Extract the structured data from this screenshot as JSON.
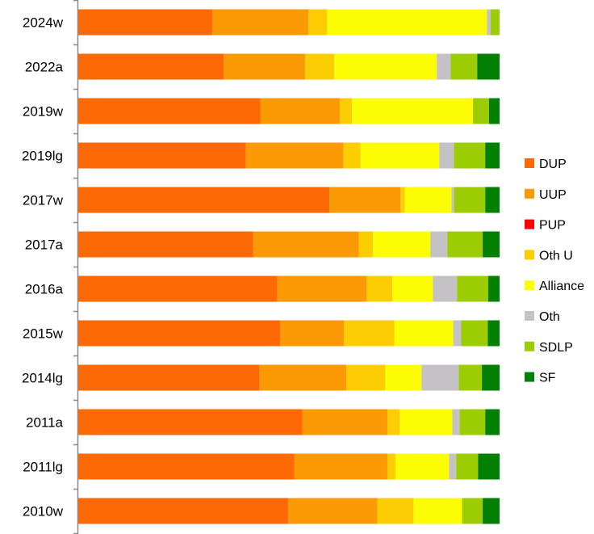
{
  "chart_data": {
    "type": "bar",
    "orientation": "horizontal",
    "stacked": "percent",
    "xlim": [
      0,
      100
    ],
    "grid": false,
    "legend_placement": "right",
    "categories": [
      "2024w",
      "2022a",
      "2019w",
      "2019lg",
      "2017w",
      "2017a",
      "2016a",
      "2015w",
      "2014lg",
      "2011a",
      "2011lg",
      "2010w"
    ],
    "series": [
      {
        "name": "DUP",
        "color": "#FD6905",
        "values": [
          31.8,
          34.5,
          43.2,
          39.7,
          59.6,
          41.5,
          47.2,
          47.9,
          43.0,
          53.1,
          51.2,
          49.8
        ]
      },
      {
        "name": "UUP",
        "color": "#FB9A04",
        "values": [
          22.8,
          19.3,
          18.9,
          23.2,
          16.9,
          25.0,
          21.2,
          15.2,
          20.6,
          20.2,
          22.1,
          21.1
        ]
      },
      {
        "name": "PUP",
        "color": "#FF0000",
        "values": [
          0,
          0,
          0,
          0,
          0,
          0,
          0,
          0,
          0,
          0,
          0,
          0
        ]
      },
      {
        "name": "Oth U",
        "color": "#FDCD04",
        "values": [
          4.4,
          6.9,
          2.9,
          4.0,
          1.0,
          3.4,
          6.1,
          11.9,
          9.2,
          2.9,
          1.9,
          8.6
        ]
      },
      {
        "name": "Alliance",
        "color": "#FCFC04",
        "values": [
          37.9,
          24.3,
          28.7,
          18.7,
          11.1,
          13.6,
          9.6,
          14.0,
          8.6,
          12.5,
          12.7,
          11.5
        ]
      },
      {
        "name": "Oth",
        "color": "#C4C2C4",
        "values": [
          0.9,
          3.3,
          0,
          3.5,
          0.6,
          4.0,
          5.7,
          1.9,
          8.8,
          1.7,
          1.7,
          0
        ]
      },
      {
        "name": "SDLP",
        "color": "#9BCC04",
        "values": [
          2.1,
          6.3,
          3.8,
          7.4,
          7.4,
          8.4,
          7.4,
          6.3,
          5.5,
          6.1,
          5.2,
          4.9
        ]
      },
      {
        "name": "SF",
        "color": "#028004",
        "values": [
          0,
          5.3,
          2.5,
          3.4,
          3.4,
          4.0,
          2.7,
          2.8,
          4.2,
          3.4,
          5.1,
          4.0
        ]
      }
    ]
  }
}
